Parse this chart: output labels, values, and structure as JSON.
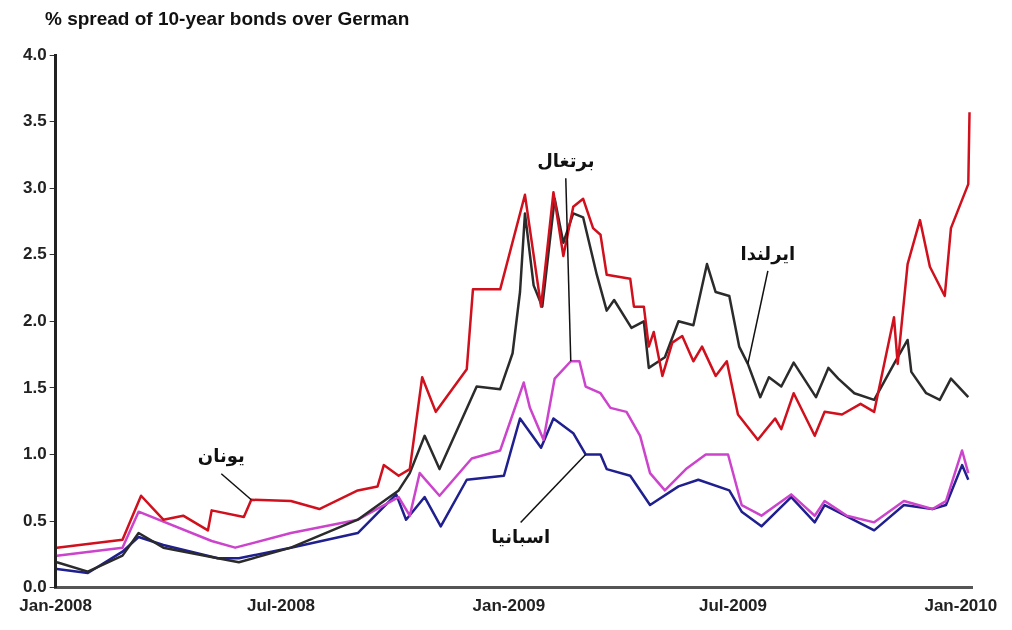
{
  "chart_data": {
    "type": "line",
    "title": "% spread of 10-year bonds over German",
    "xlim": [
      "2008-01-01",
      "2010-01-10"
    ],
    "xticks": [
      {
        "value": "2008-01-01",
        "label": "Jan-2008"
      },
      {
        "value": "2008-07-01",
        "label": "Jul-2008"
      },
      {
        "value": "2009-01-01",
        "label": "Jan-2009"
      },
      {
        "value": "2009-07-01",
        "label": "Jul-2009"
      },
      {
        "value": "2010-01-01",
        "label": "Jan-2010"
      }
    ],
    "ylim": [
      0,
      4
    ],
    "yticks": [
      {
        "value": 0,
        "label": "0.0"
      },
      {
        "value": 0.5,
        "label": "0.5"
      },
      {
        "value": 1,
        "label": "1.0"
      },
      {
        "value": 1.5,
        "label": "1.5"
      },
      {
        "value": 2,
        "label": "2.0"
      },
      {
        "value": 2.5,
        "label": "2.5"
      },
      {
        "value": 3,
        "label": "3.0"
      },
      {
        "value": 3.5,
        "label": "3.5"
      },
      {
        "value": 4,
        "label": "4.0"
      }
    ],
    "grid": false,
    "legend": false,
    "marker": "none",
    "line_style": "solid",
    "series": [
      {
        "name": "يونان",
        "color": "#d0101c",
        "x": [
          "2008-01-02",
          "2008-02-24",
          "2008-03-10",
          "2008-03-28",
          "2008-04-13",
          "2008-05-03",
          "2008-05-06",
          "2008-06-01",
          "2008-06-07",
          "2008-07-09",
          "2008-08-01",
          "2008-09-01",
          "2008-09-17",
          "2008-09-22",
          "2008-10-04",
          "2008-10-13",
          "2008-10-23",
          "2008-11-03",
          "2008-11-28",
          "2008-12-03",
          "2008-12-25",
          "2009-01-14",
          "2009-01-27",
          "2009-02-06",
          "2009-02-14",
          "2009-02-22",
          "2009-03-02",
          "2009-03-10",
          "2009-03-16",
          "2009-03-21",
          "2009-04-09",
          "2009-04-12",
          "2009-04-20",
          "2009-04-24",
          "2009-04-28",
          "2009-05-05",
          "2009-05-13",
          "2009-05-21",
          "2009-05-30",
          "2009-06-06",
          "2009-06-17",
          "2009-06-26",
          "2009-07-05",
          "2009-07-21",
          "2009-08-04",
          "2009-08-09",
          "2009-08-19",
          "2009-09-05",
          "2009-09-13",
          "2009-09-27",
          "2009-10-12",
          "2009-10-23",
          "2009-11-08",
          "2009-11-11",
          "2009-11-19",
          "2009-11-29",
          "2009-12-07",
          "2009-12-19",
          "2009-12-24",
          "2010-01-07",
          "2010-01-08"
        ],
        "values": [
          0.3,
          0.36,
          0.69,
          0.51,
          0.54,
          0.43,
          0.58,
          0.53,
          0.66,
          0.65,
          0.59,
          0.73,
          0.76,
          0.92,
          0.84,
          0.89,
          1.58,
          1.32,
          1.64,
          2.24,
          2.24,
          2.95,
          2.11,
          2.97,
          2.49,
          2.86,
          2.92,
          2.7,
          2.65,
          2.35,
          2.32,
          2.11,
          2.11,
          1.81,
          1.92,
          1.59,
          1.84,
          1.89,
          1.7,
          1.81,
          1.59,
          1.7,
          1.3,
          1.11,
          1.27,
          1.19,
          1.46,
          1.14,
          1.32,
          1.3,
          1.38,
          1.32,
          2.03,
          1.68,
          2.43,
          2.76,
          2.41,
          2.19,
          2.7,
          3.03,
          3.57
        ]
      },
      {
        "name": "ايرلندا",
        "color": "#2b2b2b",
        "x": [
          "2008-01-02",
          "2008-01-27",
          "2008-02-24",
          "2008-03-08",
          "2008-03-28",
          "2008-05-11",
          "2008-05-28",
          "2008-07-09",
          "2008-09-01",
          "2008-10-04",
          "2008-10-13",
          "2008-10-25",
          "2008-11-06",
          "2008-12-06",
          "2008-12-25",
          "2009-01-04",
          "2009-01-10",
          "2009-01-14",
          "2009-01-21",
          "2009-01-28",
          "2009-02-07",
          "2009-02-14",
          "2009-02-22",
          "2009-03-02",
          "2009-03-13",
          "2009-03-21",
          "2009-03-27",
          "2009-04-10",
          "2009-04-20",
          "2009-04-24",
          "2009-05-07",
          "2009-05-18",
          "2009-05-30",
          "2009-06-10",
          "2009-06-17",
          "2009-06-28",
          "2009-07-06",
          "2009-07-13",
          "2009-07-23",
          "2009-07-30",
          "2009-08-09",
          "2009-08-19",
          "2009-09-06",
          "2009-09-16",
          "2009-09-24",
          "2009-10-07",
          "2009-10-23",
          "2009-11-08",
          "2009-11-19",
          "2009-11-22",
          "2009-12-04",
          "2009-12-15",
          "2009-12-24",
          "2010-01-07"
        ],
        "values": [
          0.19,
          0.12,
          0.24,
          0.41,
          0.3,
          0.22,
          0.19,
          0.3,
          0.51,
          0.73,
          0.86,
          1.14,
          0.89,
          1.51,
          1.49,
          1.76,
          2.22,
          2.81,
          2.27,
          2.11,
          2.92,
          2.59,
          2.81,
          2.78,
          2.35,
          2.08,
          2.16,
          1.95,
          2.0,
          1.65,
          1.73,
          2.0,
          1.97,
          2.43,
          2.22,
          2.19,
          1.81,
          1.68,
          1.43,
          1.58,
          1.51,
          1.69,
          1.43,
          1.65,
          1.57,
          1.46,
          1.41,
          1.68,
          1.86,
          1.62,
          1.46,
          1.41,
          1.57,
          1.43
        ]
      },
      {
        "name": "برتغال",
        "color": "#cc44cc",
        "x": [
          "2008-01-02",
          "2008-02-24",
          "2008-03-08",
          "2008-05-06",
          "2008-05-25",
          "2008-07-09",
          "2008-09-01",
          "2008-10-04",
          "2008-10-13",
          "2008-10-21",
          "2008-11-06",
          "2008-12-02",
          "2008-12-25",
          "2009-01-13",
          "2009-01-18",
          "2009-01-29",
          "2009-02-07",
          "2009-02-20",
          "2009-02-27",
          "2009-03-04",
          "2009-03-16",
          "2009-03-24",
          "2009-04-06",
          "2009-04-17",
          "2009-04-25",
          "2009-05-07",
          "2009-05-24",
          "2009-06-09",
          "2009-06-27",
          "2009-07-08",
          "2009-07-24",
          "2009-08-17",
          "2009-09-05",
          "2009-09-13",
          "2009-10-01",
          "2009-10-23",
          "2009-11-16",
          "2009-12-09",
          "2009-12-20",
          "2010-01-02",
          "2010-01-07"
        ],
        "values": [
          0.24,
          0.3,
          0.57,
          0.35,
          0.3,
          0.41,
          0.51,
          0.68,
          0.54,
          0.86,
          0.69,
          0.97,
          1.03,
          1.54,
          1.35,
          1.11,
          1.57,
          1.7,
          1.7,
          1.51,
          1.46,
          1.35,
          1.32,
          1.14,
          0.86,
          0.73,
          0.89,
          1.0,
          1.0,
          0.62,
          0.54,
          0.7,
          0.54,
          0.65,
          0.54,
          0.49,
          0.65,
          0.59,
          0.65,
          1.03,
          0.86
        ]
      },
      {
        "name": "اسبانيا",
        "color": "#1f1f8f",
        "x": [
          "2008-01-02",
          "2008-01-27",
          "2008-02-24",
          "2008-03-08",
          "2008-03-28",
          "2008-05-11",
          "2008-05-28",
          "2008-07-09",
          "2008-09-01",
          "2008-10-02",
          "2008-10-10",
          "2008-10-25",
          "2008-11-07",
          "2008-11-28",
          "2008-12-28",
          "2009-01-10",
          "2009-01-27",
          "2009-02-06",
          "2009-02-22",
          "2009-03-04",
          "2009-03-16",
          "2009-03-21",
          "2009-04-09",
          "2009-04-25",
          "2009-05-18",
          "2009-06-03",
          "2009-06-28",
          "2009-07-08",
          "2009-07-24",
          "2009-08-17",
          "2009-09-05",
          "2009-09-13",
          "2009-10-23",
          "2009-11-16",
          "2009-12-09",
          "2009-12-20",
          "2010-01-02",
          "2010-01-07"
        ],
        "values": [
          0.14,
          0.11,
          0.27,
          0.38,
          0.32,
          0.22,
          0.22,
          0.3,
          0.41,
          0.7,
          0.51,
          0.68,
          0.46,
          0.81,
          0.84,
          1.27,
          1.05,
          1.27,
          1.16,
          1.0,
          1.0,
          0.89,
          0.84,
          0.62,
          0.76,
          0.81,
          0.73,
          0.57,
          0.46,
          0.68,
          0.49,
          0.62,
          0.43,
          0.62,
          0.59,
          0.62,
          0.92,
          0.81
        ]
      }
    ]
  }
}
